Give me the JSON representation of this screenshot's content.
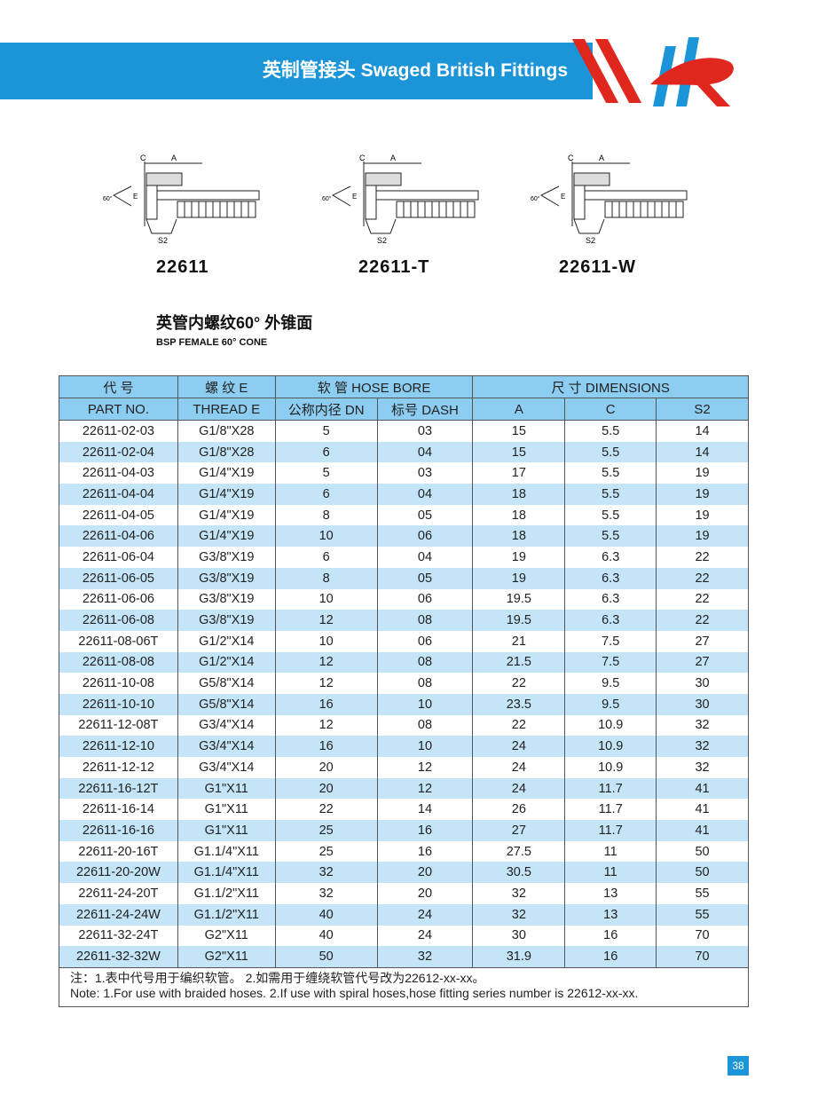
{
  "header": {
    "title": "英制管接头 Swaged British Fittings",
    "brand_colors": {
      "blue": "#1b95d8",
      "red": "#e0271e"
    },
    "logo_text": "HR"
  },
  "figures": [
    {
      "label": "22611",
      "dims": [
        "C",
        "A",
        "E",
        "60°",
        "S2"
      ]
    },
    {
      "label": "22611-T",
      "dims": [
        "C",
        "A",
        "E",
        "60°",
        "S2"
      ]
    },
    {
      "label": "22611-W",
      "dims": [
        "C",
        "A",
        "E",
        "60°",
        "S2"
      ]
    }
  ],
  "section": {
    "title_cn": "英管内螺纹60°  外锥面",
    "title_en": "BSP FEMALE 60°  CONE"
  },
  "table": {
    "header_row1": [
      "代 号",
      "螺 纹 E",
      "软  管 HOSE BORE",
      "尺 寸 DIMENSIONS"
    ],
    "header_row2": [
      "PART NO.",
      "THREAD E",
      "公称内径 DN",
      "标号 DASH",
      "A",
      "C",
      "S2"
    ],
    "rows": [
      [
        "22611-02-03",
        "G1/8\"X28",
        "5",
        "03",
        "15",
        "5.5",
        "14"
      ],
      [
        "22611-02-04",
        "G1/8\"X28",
        "6",
        "04",
        "15",
        "5.5",
        "14"
      ],
      [
        "22611-04-03",
        "G1/4\"X19",
        "5",
        "03",
        "17",
        "5.5",
        "19"
      ],
      [
        "22611-04-04",
        "G1/4\"X19",
        "6",
        "04",
        "18",
        "5.5",
        "19"
      ],
      [
        "22611-04-05",
        "G1/4\"X19",
        "8",
        "05",
        "18",
        "5.5",
        "19"
      ],
      [
        "22611-04-06",
        "G1/4\"X19",
        "10",
        "06",
        "18",
        "5.5",
        "19"
      ],
      [
        "22611-06-04",
        "G3/8\"X19",
        "6",
        "04",
        "19",
        "6.3",
        "22"
      ],
      [
        "22611-06-05",
        "G3/8\"X19",
        "8",
        "05",
        "19",
        "6.3",
        "22"
      ],
      [
        "22611-06-06",
        "G3/8\"X19",
        "10",
        "06",
        "19.5",
        "6.3",
        "22"
      ],
      [
        "22611-06-08",
        "G3/8\"X19",
        "12",
        "08",
        "19.5",
        "6.3",
        "22"
      ],
      [
        "22611-08-06T",
        "G1/2\"X14",
        "10",
        "06",
        "21",
        "7.5",
        "27"
      ],
      [
        "22611-08-08",
        "G1/2\"X14",
        "12",
        "08",
        "21.5",
        "7.5",
        "27"
      ],
      [
        "22611-10-08",
        "G5/8\"X14",
        "12",
        "08",
        "22",
        "9.5",
        "30"
      ],
      [
        "22611-10-10",
        "G5/8\"X14",
        "16",
        "10",
        "23.5",
        "9.5",
        "30"
      ],
      [
        "22611-12-08T",
        "G3/4\"X14",
        "12",
        "08",
        "22",
        "10.9",
        "32"
      ],
      [
        "22611-12-10",
        "G3/4\"X14",
        "16",
        "10",
        "24",
        "10.9",
        "32"
      ],
      [
        "22611-12-12",
        "G3/4\"X14",
        "20",
        "12",
        "24",
        "10.9",
        "32"
      ],
      [
        "22611-16-12T",
        "G1\"X11",
        "20",
        "12",
        "24",
        "11.7",
        "41"
      ],
      [
        "22611-16-14",
        "G1\"X11",
        "22",
        "14",
        "26",
        "11.7",
        "41"
      ],
      [
        "22611-16-16",
        "G1\"X11",
        "25",
        "16",
        "27",
        "11.7",
        "41"
      ],
      [
        "22611-20-16T",
        "G1.1/4\"X11",
        "25",
        "16",
        "27.5",
        "11",
        "50"
      ],
      [
        "22611-20-20W",
        "G1.1/4\"X11",
        "32",
        "20",
        "30.5",
        "11",
        "50"
      ],
      [
        "22611-24-20T",
        "G1.1/2\"X11",
        "32",
        "20",
        "32",
        "13",
        "55"
      ],
      [
        "22611-24-24W",
        "G1.1/2\"X11",
        "40",
        "24",
        "32",
        "13",
        "55"
      ],
      [
        "22611-32-24T",
        "G2\"X11",
        "40",
        "24",
        "30",
        "16",
        "70"
      ],
      [
        "22611-32-32W",
        "G2\"X11",
        "50",
        "32",
        "31.9",
        "16",
        "70"
      ]
    ],
    "note_cn": "注：1.表中代号用于编织软管。   2.如需用于缠绕软管代号改为22612-xx-xx。",
    "note_en": "Note: 1.For use with braided hoses.   2.If use with spiral hoses,hose fitting series number is 22612-xx-xx."
  },
  "page_number": "38"
}
